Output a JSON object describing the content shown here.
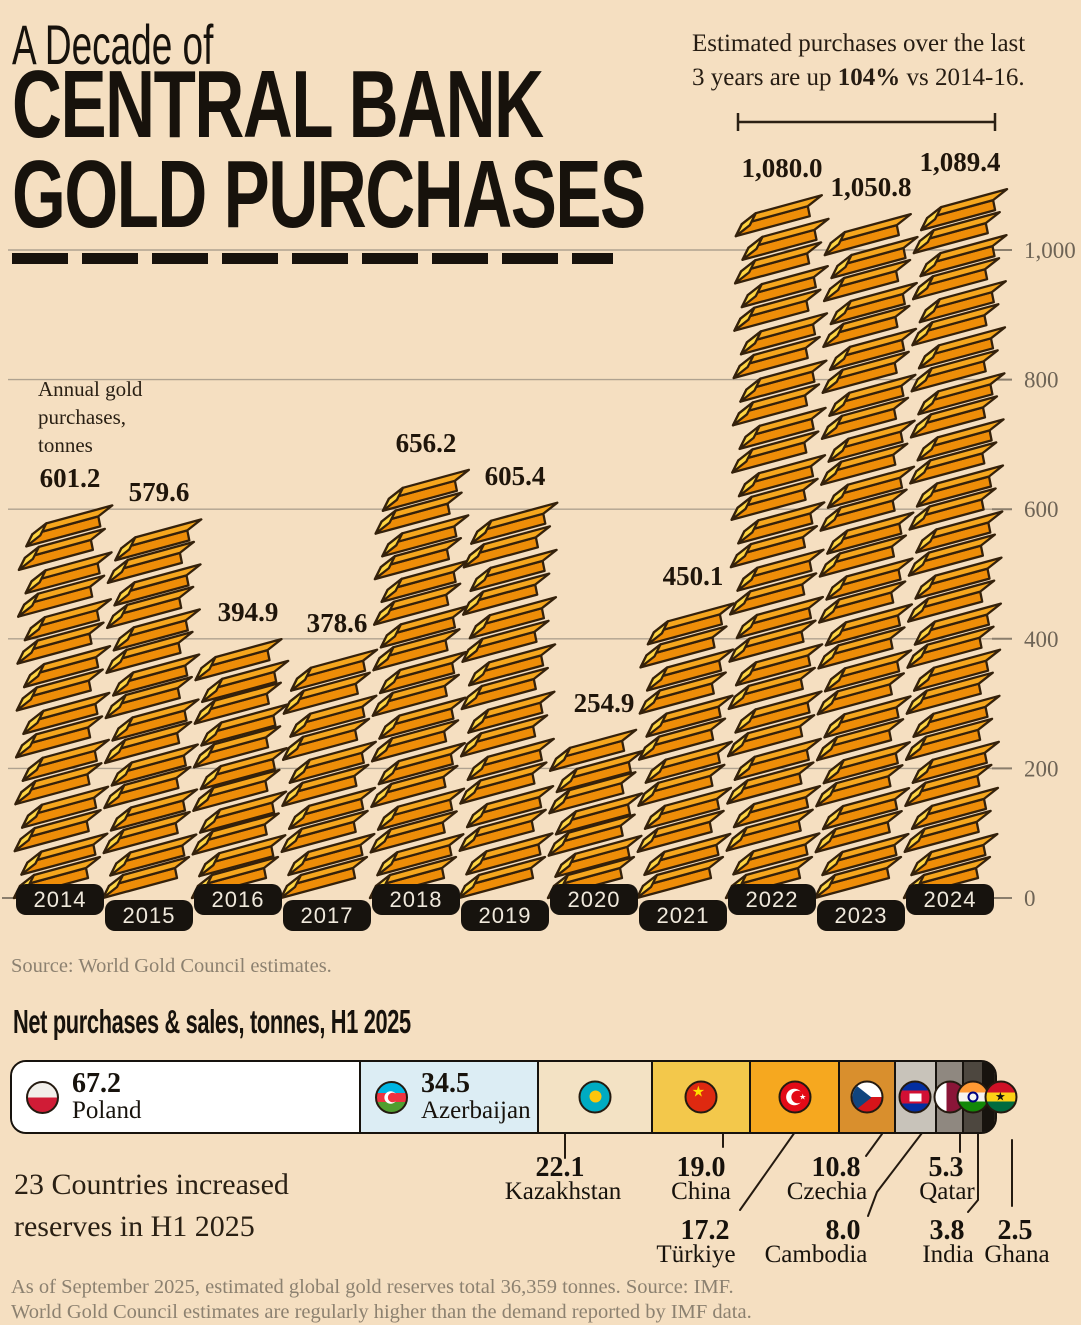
{
  "page": {
    "background": "#F5DFC1"
  },
  "header": {
    "kicker": "A Decade of",
    "title_line1": "CENTRAL BANK",
    "title_line2": "GOLD PURCHASES"
  },
  "annotation": {
    "line1": "Estimated purchases over the last",
    "line2_pre": "3 years are up ",
    "line2_bold": "104%",
    "line2_post": " vs 2014-16."
  },
  "main_chart": {
    "axis_note_line1": "Annual gold",
    "axis_note_line2": "purchases,",
    "axis_note_line3": "tonnes",
    "source": "Source: World Gold Council estimates."
  },
  "chart_data": [
    {
      "type": "bar",
      "title": "A Decade of Central Bank Gold Purchases",
      "unit": "tonnes",
      "categories": [
        "2014",
        "2015",
        "2016",
        "2017",
        "2018",
        "2019",
        "2020",
        "2021",
        "2022",
        "2023",
        "2024"
      ],
      "values": [
        601.2,
        579.6,
        394.9,
        378.6,
        656.2,
        605.4,
        254.9,
        450.1,
        1080.0,
        1050.8,
        1089.4
      ],
      "value_labels": [
        "601.2",
        "579.6",
        "394.9",
        "378.6",
        "656.2",
        "605.4",
        "254.9",
        "450.1",
        "1,080.0",
        "1,050.8",
        "1,089.4"
      ],
      "ylabel": "Annual gold purchases, tonnes",
      "yticks": [
        0,
        200,
        400,
        600,
        800,
        1000
      ],
      "ytick_labels": [
        "0",
        "200",
        "400",
        "600",
        "800",
        "1,000"
      ],
      "ylim": [
        0,
        1150
      ],
      "grid": true,
      "legend_position": "none",
      "bar_style": "stacked-gold-ingots",
      "annotation": "Estimated purchases over the last 3 years are up 104% vs 2014-16.",
      "bracket_years": [
        "2022",
        "2023",
        "2024"
      ]
    },
    {
      "type": "bar",
      "orientation": "horizontal-composition",
      "title": "Net purchases & sales, tonnes, H1 2025",
      "categories": [
        "Poland",
        "Azerbaijan",
        "Kazakhstan",
        "China",
        "Türkiye",
        "Czechia",
        "Cambodia",
        "Qatar",
        "India",
        "Ghana"
      ],
      "values": [
        67.2,
        34.5,
        22.1,
        19.0,
        17.2,
        10.8,
        8.0,
        5.3,
        3.8,
        2.5
      ],
      "note": "23 Countries increased reserves in H1 2025"
    }
  ],
  "bottom": {
    "heading": "Net purchases & sales, tonnes, H1 2025",
    "note_line1": "23 Countries increased",
    "note_line2": "reserves in H1 2025",
    "countries": [
      {
        "name": "Poland",
        "value_label": "67.2",
        "value": 67.2,
        "segment_color": "#FFFFFF",
        "flag": "poland",
        "label_in_bar": true
      },
      {
        "name": "Azerbaijan",
        "value_label": "34.5",
        "value": 34.5,
        "segment_color": "#DCEDF4",
        "flag": "azerbaijan",
        "label_in_bar": true
      },
      {
        "name": "Kazakhstan",
        "value_label": "22.1",
        "value": 22.1,
        "segment_color": "#F3E2C4",
        "flag": "kazakhstan",
        "label_in_bar": false
      },
      {
        "name": "China",
        "value_label": "19.0",
        "value": 19.0,
        "segment_color": "#F3C84B",
        "flag": "china",
        "label_in_bar": false
      },
      {
        "name": "Türkiye",
        "value_label": "17.2",
        "value": 17.2,
        "segment_color": "#F6A81F",
        "flag": "turkiye",
        "label_in_bar": false
      },
      {
        "name": "Czechia",
        "value_label": "10.8",
        "value": 10.8,
        "segment_color": "#D98F2D",
        "flag": "czechia",
        "label_in_bar": false
      },
      {
        "name": "Cambodia",
        "value_label": "8.0",
        "value": 8.0,
        "segment_color": "#C8C3BA",
        "flag": "cambodia",
        "label_in_bar": false
      },
      {
        "name": "Qatar",
        "value_label": "5.3",
        "value": 5.3,
        "segment_color": "#8F8880",
        "flag": "qatar",
        "label_in_bar": false
      },
      {
        "name": "India",
        "value_label": "3.8",
        "value": 3.8,
        "segment_color": "#4D473F",
        "flag": "india",
        "label_in_bar": false
      },
      {
        "name": "Ghana",
        "value_label": "2.5",
        "value": 2.5,
        "segment_color": "#17130E",
        "flag": "ghana",
        "label_in_bar": false
      }
    ],
    "footnote_line1": "As of September 2025, estimated global gold reserves total 36,359 tonnes. Source: IMF.",
    "footnote_line2": "World Gold Council estimates are regularly higher than the demand reported by IMF data."
  },
  "colors": {
    "background": "#F5DFC1",
    "ingot_front": "#EE8D08",
    "ingot_top": "#F6A71E",
    "ingot_cap": "#FFD542",
    "ingot_outline": "#34210B",
    "grid": "#AFA290",
    "axis_text": "#6E6456",
    "pill_bg": "#17130E",
    "pill_text": "#F0E9DC",
    "text_dark": "#17120C",
    "muted_text": "#8C8170"
  }
}
